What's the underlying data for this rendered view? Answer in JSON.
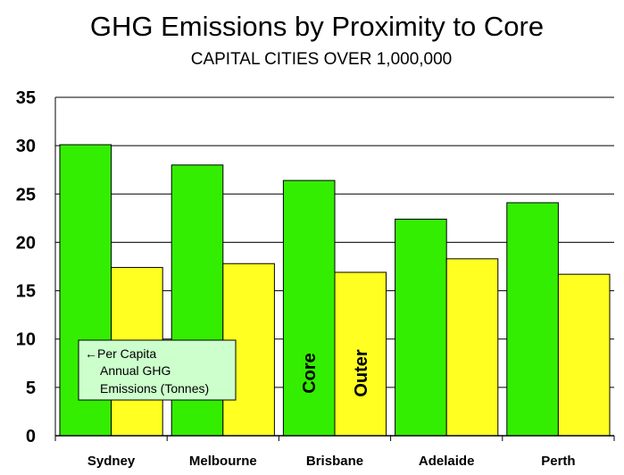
{
  "chart_data": {
    "type": "bar",
    "title": "GHG Emissions by Proximity to Core",
    "subtitle": "CAPITAL CITIES OVER 1,000,000",
    "categories": [
      "Sydney",
      "Melbourne",
      "Brisbane",
      "Adelaide",
      "Perth"
    ],
    "series": [
      {
        "name": "Core",
        "values": [
          30.1,
          28.0,
          26.4,
          22.4,
          24.1
        ],
        "color": "#33ee00"
      },
      {
        "name": "Outer",
        "values": [
          17.4,
          17.8,
          16.9,
          18.3,
          16.7
        ],
        "color": "#ffff22"
      }
    ],
    "ylim": [
      0,
      35
    ],
    "yticks": [
      "0",
      "5",
      "10",
      "15",
      "20",
      "25",
      "30",
      "35"
    ],
    "grid": true,
    "annotation": [
      "←Per Capita",
      "Annual GHG",
      "Emissions (Tonnes)"
    ]
  }
}
